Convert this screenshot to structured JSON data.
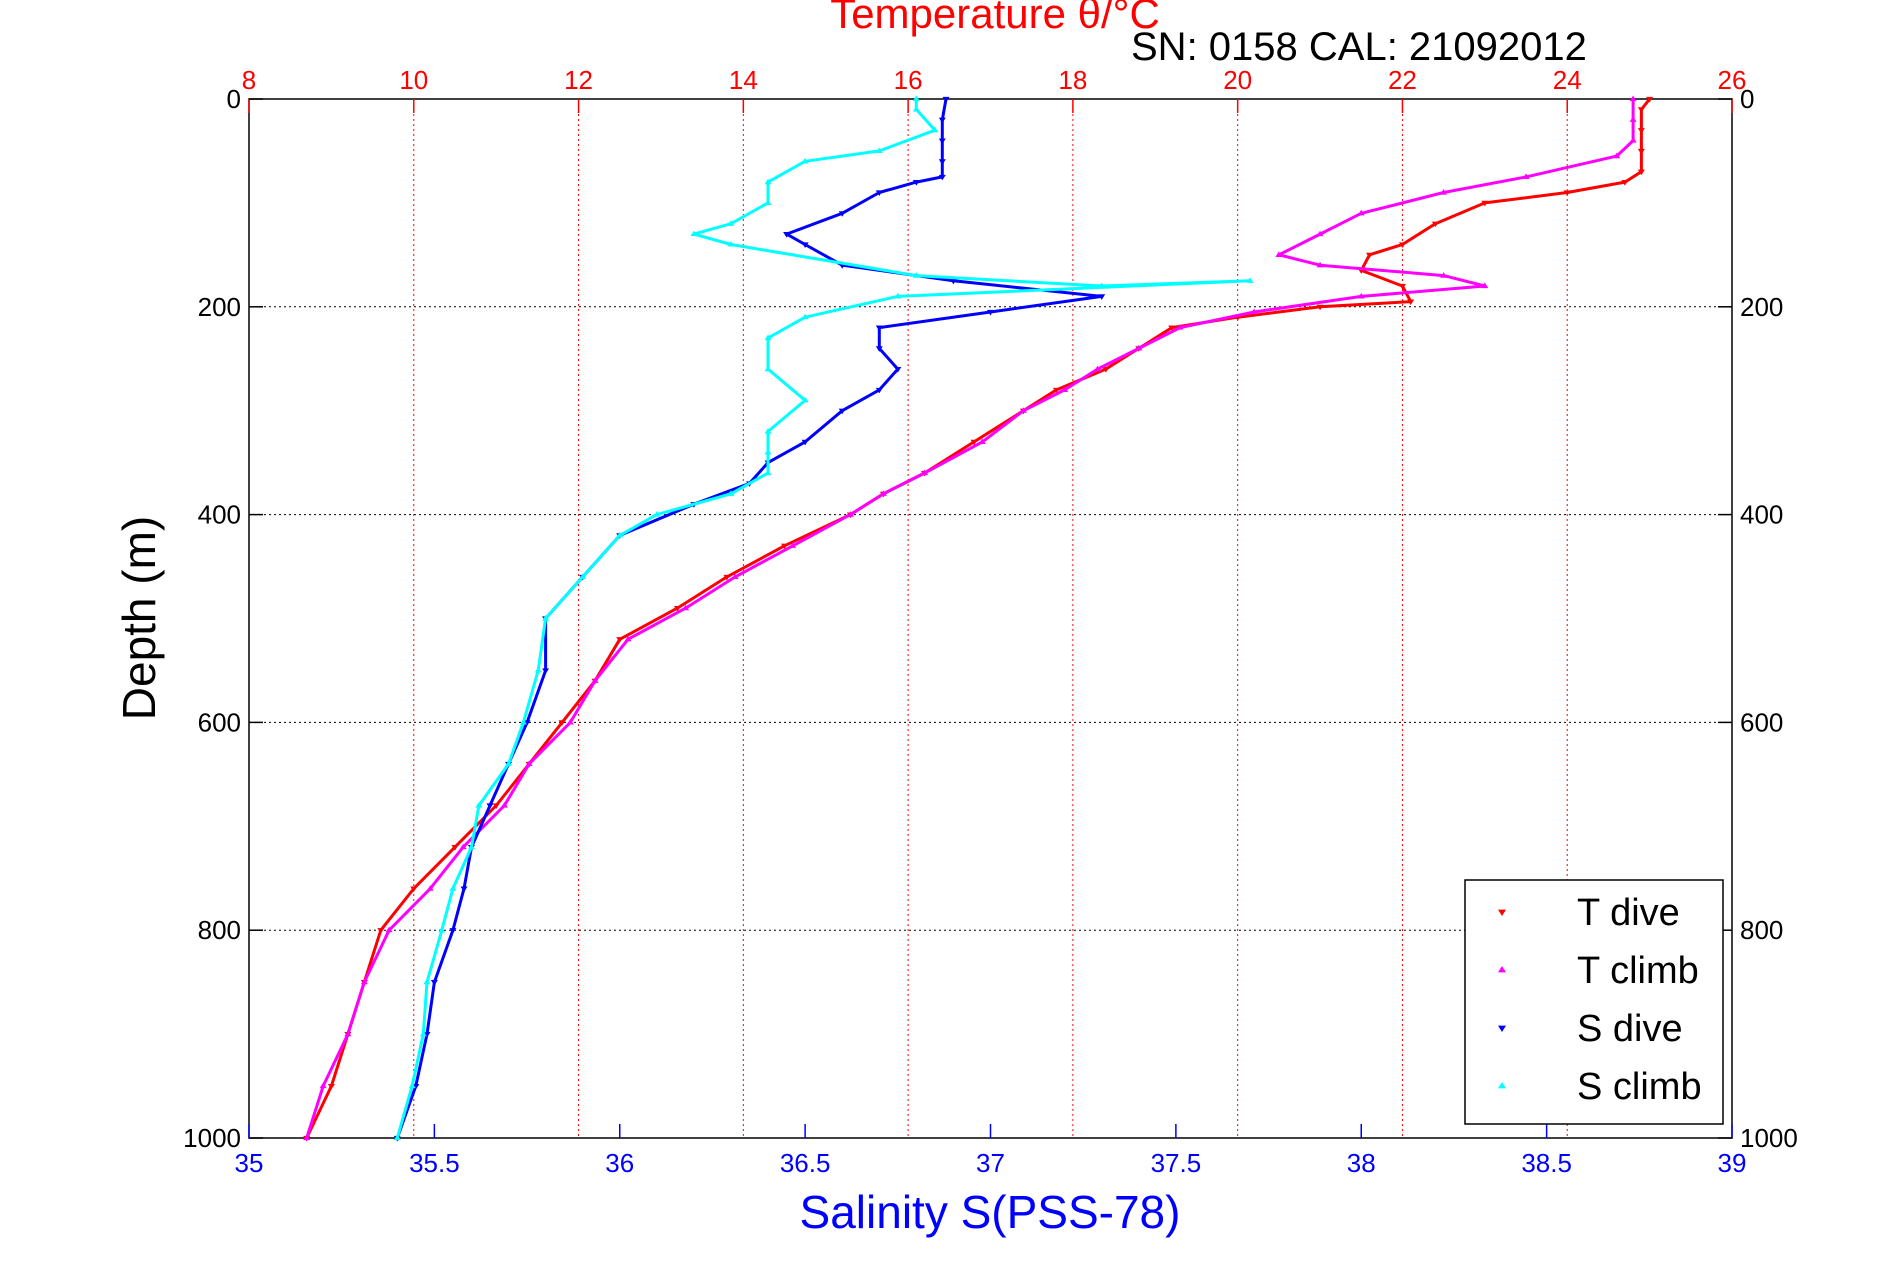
{
  "figure": {
    "top_title": "Temperature θ/°C",
    "serial_info": "SN: 0158  CAL: 21092012",
    "ylabel": "Depth (m)",
    "xlabel_bottom": "Salinity S(PSS-78)"
  },
  "colors": {
    "temperature_axis": "#ff0000",
    "salinity_axis": "#0000ff",
    "t_dive": "#ff0000",
    "t_climb": "#ff00ff",
    "s_dive": "#0000ff",
    "s_climb": "#00ffff",
    "depth_grid": "#000000"
  },
  "chart_data": {
    "type": "scatter",
    "y_axis": {
      "label": "Depth (m)",
      "range": [
        0,
        1000
      ],
      "reversed": true,
      "ticks": [
        0,
        200,
        400,
        600,
        800,
        1000
      ],
      "grid": true
    },
    "x_axis_top": {
      "label": "Temperature θ/°C",
      "range": [
        8,
        26
      ],
      "ticks": [
        8,
        10,
        12,
        14,
        16,
        18,
        20,
        22,
        24,
        26
      ],
      "grid": true
    },
    "x_axis_bottom": {
      "label": "Salinity S(PSS-78)",
      "range": [
        35,
        39
      ],
      "ticks": [
        "35",
        "35.5",
        "36",
        "36.5",
        "37",
        "37.5",
        "38",
        "38.5",
        "39"
      ]
    },
    "legend": {
      "placement": "bottom-right",
      "entries": [
        "T dive",
        "T climb",
        "S dive",
        "S climb"
      ]
    },
    "series": [
      {
        "name": "T dive",
        "axis": "temperature",
        "marker": "down-triangle",
        "points": [
          [
            25.0,
            0
          ],
          [
            24.9,
            10
          ],
          [
            24.9,
            30
          ],
          [
            24.9,
            50
          ],
          [
            24.9,
            70
          ],
          [
            24.7,
            80
          ],
          [
            24.0,
            90
          ],
          [
            23.0,
            100
          ],
          [
            22.4,
            120
          ],
          [
            22.0,
            140
          ],
          [
            21.6,
            150
          ],
          [
            21.5,
            165
          ],
          [
            22.0,
            180
          ],
          [
            22.1,
            195
          ],
          [
            21.0,
            200
          ],
          [
            20.0,
            210
          ],
          [
            19.2,
            220
          ],
          [
            18.8,
            240
          ],
          [
            18.4,
            260
          ],
          [
            17.8,
            280
          ],
          [
            17.4,
            300
          ],
          [
            16.8,
            330
          ],
          [
            16.2,
            360
          ],
          [
            15.7,
            380
          ],
          [
            15.3,
            400
          ],
          [
            14.5,
            430
          ],
          [
            13.8,
            460
          ],
          [
            13.2,
            490
          ],
          [
            12.5,
            520
          ],
          [
            12.2,
            560
          ],
          [
            11.8,
            600
          ],
          [
            11.4,
            640
          ],
          [
            11.0,
            680
          ],
          [
            10.5,
            720
          ],
          [
            10.0,
            760
          ],
          [
            9.6,
            800
          ],
          [
            9.4,
            850
          ],
          [
            9.2,
            900
          ],
          [
            9.0,
            950
          ],
          [
            8.7,
            1000
          ]
        ]
      },
      {
        "name": "T climb",
        "axis": "temperature",
        "marker": "up-triangle",
        "points": [
          [
            24.8,
            0
          ],
          [
            24.8,
            20
          ],
          [
            24.8,
            40
          ],
          [
            24.6,
            55
          ],
          [
            23.5,
            75
          ],
          [
            22.5,
            90
          ],
          [
            21.5,
            110
          ],
          [
            21.0,
            130
          ],
          [
            20.5,
            150
          ],
          [
            21.0,
            160
          ],
          [
            22.5,
            170
          ],
          [
            23.0,
            180
          ],
          [
            21.5,
            190
          ],
          [
            20.2,
            205
          ],
          [
            19.3,
            220
          ],
          [
            18.8,
            240
          ],
          [
            18.3,
            260
          ],
          [
            17.9,
            280
          ],
          [
            17.4,
            300
          ],
          [
            16.9,
            330
          ],
          [
            16.2,
            360
          ],
          [
            15.7,
            380
          ],
          [
            15.3,
            400
          ],
          [
            14.6,
            430
          ],
          [
            13.9,
            460
          ],
          [
            13.3,
            490
          ],
          [
            12.6,
            520
          ],
          [
            12.2,
            560
          ],
          [
            11.9,
            600
          ],
          [
            11.4,
            640
          ],
          [
            11.1,
            680
          ],
          [
            10.6,
            720
          ],
          [
            10.2,
            760
          ],
          [
            9.7,
            800
          ],
          [
            9.4,
            850
          ],
          [
            9.2,
            900
          ],
          [
            8.9,
            950
          ],
          [
            8.7,
            1000
          ]
        ]
      },
      {
        "name": "S dive",
        "axis": "salinity",
        "marker": "down-triangle",
        "points": [
          [
            36.88,
            0
          ],
          [
            36.87,
            20
          ],
          [
            36.87,
            40
          ],
          [
            36.87,
            60
          ],
          [
            36.87,
            75
          ],
          [
            36.8,
            80
          ],
          [
            36.7,
            90
          ],
          [
            36.6,
            110
          ],
          [
            36.45,
            130
          ],
          [
            36.5,
            140
          ],
          [
            36.6,
            160
          ],
          [
            36.9,
            175
          ],
          [
            37.3,
            190
          ],
          [
            37.0,
            205
          ],
          [
            36.7,
            220
          ],
          [
            36.7,
            240
          ],
          [
            36.75,
            260
          ],
          [
            36.7,
            280
          ],
          [
            36.6,
            300
          ],
          [
            36.5,
            330
          ],
          [
            36.4,
            350
          ],
          [
            36.35,
            370
          ],
          [
            36.2,
            390
          ],
          [
            36.0,
            420
          ],
          [
            35.9,
            460
          ],
          [
            35.8,
            500
          ],
          [
            35.8,
            550
          ],
          [
            35.75,
            600
          ],
          [
            35.7,
            640
          ],
          [
            35.65,
            680
          ],
          [
            35.6,
            720
          ],
          [
            35.58,
            760
          ],
          [
            35.55,
            800
          ],
          [
            35.5,
            850
          ],
          [
            35.48,
            900
          ],
          [
            35.45,
            950
          ],
          [
            35.4,
            1000
          ]
        ]
      },
      {
        "name": "S climb",
        "axis": "salinity",
        "marker": "up-triangle",
        "points": [
          [
            36.8,
            0
          ],
          [
            36.8,
            10
          ],
          [
            36.85,
            30
          ],
          [
            36.7,
            50
          ],
          [
            36.5,
            60
          ],
          [
            36.4,
            80
          ],
          [
            36.4,
            100
          ],
          [
            36.3,
            120
          ],
          [
            36.2,
            130
          ],
          [
            36.3,
            140
          ],
          [
            36.8,
            170
          ],
          [
            37.3,
            180
          ],
          [
            37.7,
            175
          ],
          [
            36.75,
            190
          ],
          [
            36.5,
            210
          ],
          [
            36.4,
            230
          ],
          [
            36.4,
            260
          ],
          [
            36.5,
            290
          ],
          [
            36.4,
            320
          ],
          [
            36.4,
            340
          ],
          [
            36.4,
            360
          ],
          [
            36.3,
            380
          ],
          [
            36.1,
            400
          ],
          [
            36.0,
            420
          ],
          [
            35.9,
            460
          ],
          [
            35.8,
            500
          ],
          [
            35.78,
            550
          ],
          [
            35.74,
            600
          ],
          [
            35.7,
            640
          ],
          [
            35.62,
            680
          ],
          [
            35.6,
            720
          ],
          [
            35.55,
            760
          ],
          [
            35.52,
            800
          ],
          [
            35.48,
            850
          ],
          [
            35.47,
            900
          ],
          [
            35.44,
            950
          ],
          [
            35.4,
            1000
          ]
        ]
      }
    ]
  }
}
